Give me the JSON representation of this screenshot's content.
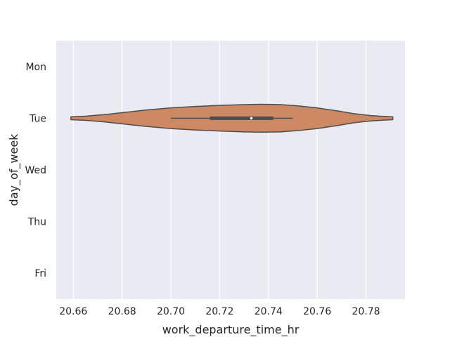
{
  "chart_data": {
    "type": "violin",
    "orientation": "horizontal",
    "xlabel": "work_departure_time_hr",
    "ylabel": "day_of_week",
    "categories": [
      "Mon",
      "Tue",
      "Wed",
      "Thu",
      "Fri"
    ],
    "xlim": [
      20.653,
      20.796
    ],
    "x_ticks": [
      "20.66",
      "20.68",
      "20.70",
      "20.72",
      "20.74",
      "20.76",
      "20.78"
    ],
    "grid": true,
    "background_color": "#eaeaf2",
    "violin_color": "#cc8963",
    "edge_color": "#4d4d4d",
    "violins": [
      {
        "category": "Tue",
        "density_x": [
          20.659,
          20.665,
          20.673,
          20.68,
          20.69,
          20.7,
          20.71,
          20.72,
          20.73,
          20.737,
          20.745,
          20.752,
          20.76,
          20.768,
          20.775,
          20.782,
          20.786,
          20.791
        ],
        "density_half_width": [
          0.07,
          0.1,
          0.18,
          0.27,
          0.4,
          0.5,
          0.57,
          0.62,
          0.66,
          0.675,
          0.66,
          0.6,
          0.5,
          0.36,
          0.22,
          0.13,
          0.1,
          0.07
        ],
        "whisker_low": 20.7,
        "q1": 20.716,
        "median": 20.733,
        "q3": 20.742,
        "whisker_high": 20.75
      }
    ]
  }
}
